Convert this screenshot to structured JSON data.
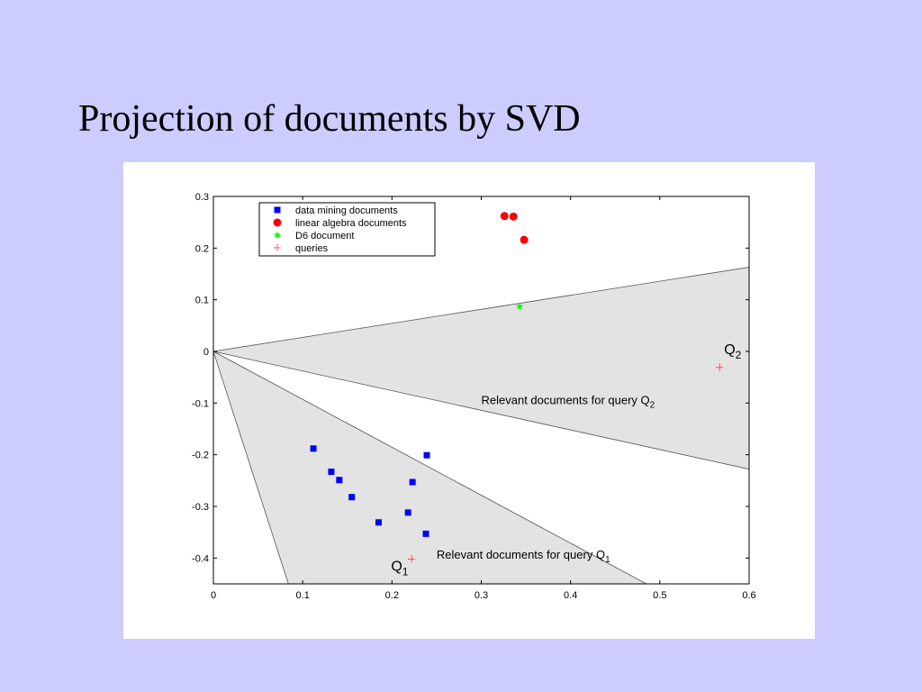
{
  "slide": {
    "title": "Projection of documents by SVD"
  },
  "chart_data": {
    "type": "scatter",
    "xlim": [
      0,
      0.6
    ],
    "ylim": [
      -0.45,
      0.3
    ],
    "x_ticks": [
      0,
      0.1,
      0.2,
      0.3,
      0.4,
      0.5,
      0.6
    ],
    "x_tick_labels": [
      "0",
      "0.1",
      "0.2",
      "0.3",
      "0.4",
      "0.5",
      "0.6"
    ],
    "y_ticks": [
      0.3,
      0.2,
      0.1,
      0,
      -0.1,
      -0.2,
      -0.3,
      -0.4
    ],
    "y_tick_labels": [
      "0.3",
      "0.2",
      "0.1",
      "0",
      "-0.1",
      "-0.2",
      "-0.3",
      "-0.4"
    ],
    "legend_position": "top-left",
    "series": [
      {
        "name": "data mining documents",
        "marker": "square",
        "color": "#0000ff",
        "points": [
          [
            0.112,
            -0.188
          ],
          [
            0.132,
            -0.233
          ],
          [
            0.141,
            -0.249
          ],
          [
            0.155,
            -0.282
          ],
          [
            0.185,
            -0.331
          ],
          [
            0.218,
            -0.312
          ],
          [
            0.223,
            -0.253
          ],
          [
            0.239,
            -0.201
          ],
          [
            0.238,
            -0.353
          ]
        ]
      },
      {
        "name": "linear algebra documents",
        "marker": "circle",
        "color": "#ff0000",
        "points": [
          [
            0.326,
            0.262
          ],
          [
            0.336,
            0.261
          ],
          [
            0.348,
            0.216
          ]
        ]
      },
      {
        "name": "D6 document",
        "marker": "star",
        "color": "#00ff00",
        "points": [
          [
            0.343,
            0.087
          ]
        ]
      },
      {
        "name": "queries",
        "marker": "plus",
        "color": "#ff0000",
        "points": [
          [
            0.567,
            -0.031
          ],
          [
            0.222,
            -0.402
          ]
        ]
      }
    ],
    "regions": [
      {
        "label_main": "Relevant documents for query Q",
        "label_sub": "2",
        "polygon": [
          [
            0,
            0
          ],
          [
            0.6,
            0.163
          ],
          [
            0.6,
            -0.228
          ]
        ]
      },
      {
        "label_main": "Relevant documents for query Q",
        "label_sub": "1",
        "polygon": [
          [
            0,
            0
          ],
          [
            0.485,
            -0.45
          ],
          [
            0.084,
            -0.45
          ]
        ]
      }
    ],
    "point_labels": [
      {
        "main": "Q",
        "sub": "2",
        "x": 0.572,
        "y": -0.005
      },
      {
        "main": "Q",
        "sub": "1",
        "x": 0.199,
        "y": -0.425
      }
    ],
    "region_label_positions": [
      {
        "x": 0.3,
        "y": -0.102
      },
      {
        "x": 0.25,
        "y": -0.401
      }
    ]
  }
}
